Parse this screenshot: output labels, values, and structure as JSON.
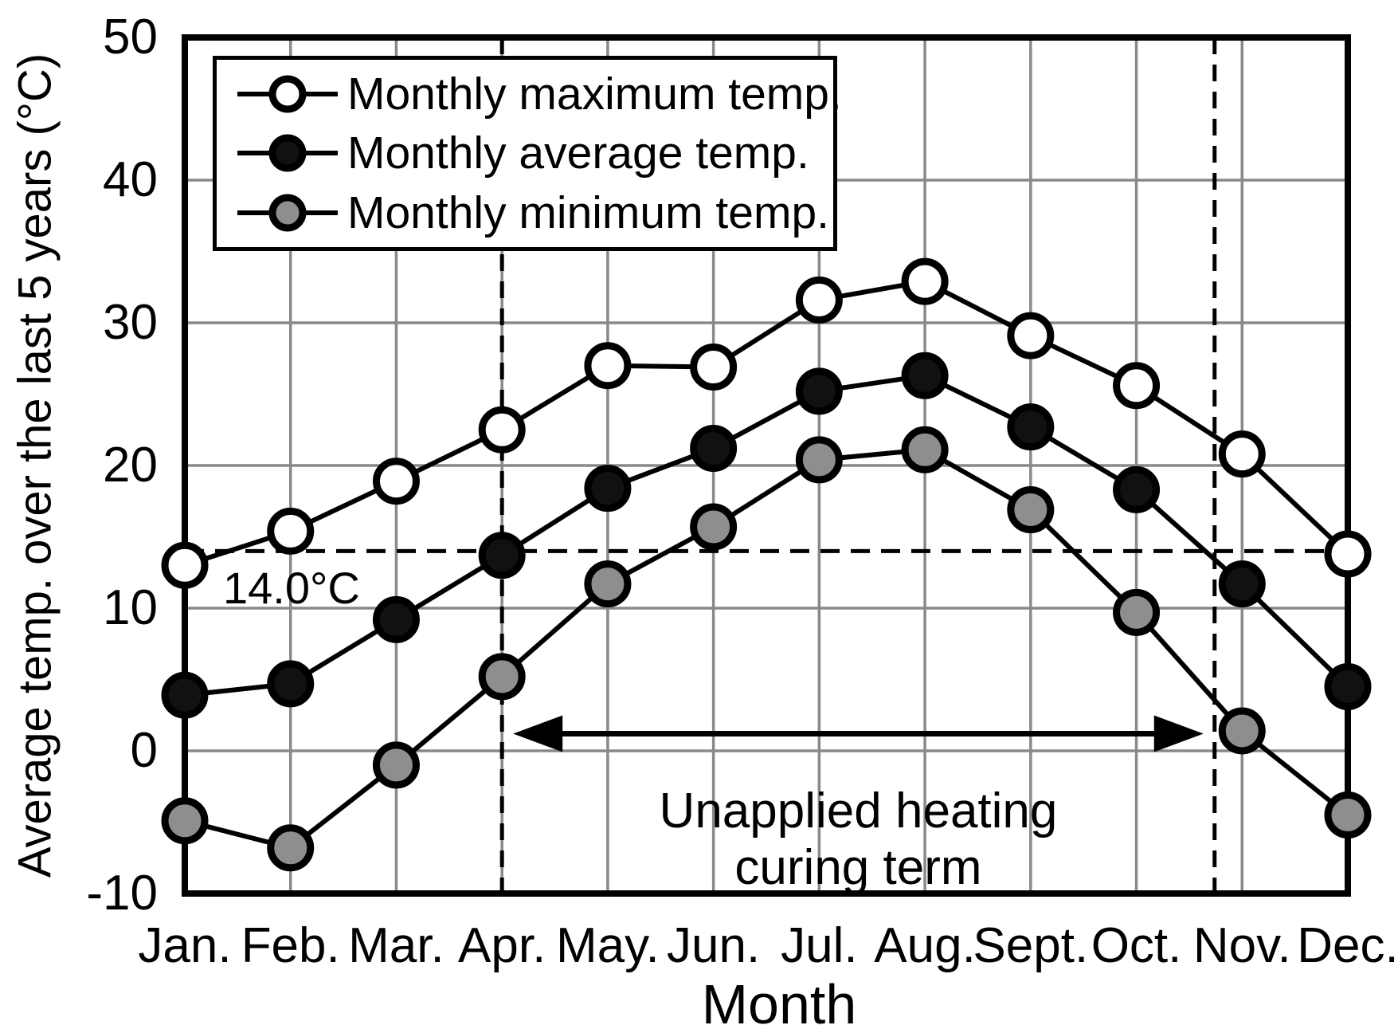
{
  "figure": {
    "y_axis_title": "Average temp. over the last 5 years (°C)",
    "x_axis_title": "Month"
  },
  "legend": {
    "items": [
      {
        "label": "Monthly maximum temp.",
        "marker": "open-circle"
      },
      {
        "label": "Monthly average temp.",
        "marker": "filled-black-circle"
      },
      {
        "label": "Monthly minimum temp.",
        "marker": "filled-gray-circle"
      }
    ]
  },
  "chart_data": {
    "type": "line",
    "title": "",
    "xlabel": "Month",
    "ylabel": "Average temp. over the last 5 years (°C)",
    "categories": [
      "Jan.",
      "Feb.",
      "Mar.",
      "Apr.",
      "May.",
      "Jun.",
      "Jul.",
      "Aug.",
      "Sept.",
      "Oct.",
      "Nov.",
      "Dec."
    ],
    "ylim": [
      -10,
      50
    ],
    "y_ticks": [
      50,
      40,
      30,
      20,
      10,
      0,
      -10
    ],
    "grid": true,
    "legend_position": "top-left-inside",
    "series": [
      {
        "name": "Monthly maximum temp.",
        "marker": "open-circle",
        "marker_fill": "#ffffff",
        "values": [
          13.0,
          15.4,
          18.9,
          22.5,
          27.0,
          26.9,
          31.6,
          32.9,
          29.1,
          25.6,
          20.8,
          13.8
        ]
      },
      {
        "name": "Monthly average temp.",
        "marker": "filled-black-circle",
        "marker_fill": "#111111",
        "values": [
          3.9,
          4.7,
          9.2,
          13.7,
          18.4,
          21.2,
          25.2,
          26.3,
          22.7,
          18.3,
          11.7,
          4.5
        ]
      },
      {
        "name": "Monthly minimum temp.",
        "marker": "filled-gray-circle",
        "marker_fill": "#8e8e8e",
        "values": [
          -4.9,
          -6.8,
          -1.0,
          5.2,
          11.7,
          15.7,
          20.4,
          21.1,
          16.9,
          9.7,
          1.4,
          -4.5
        ]
      }
    ],
    "reference_line": {
      "value": 14.0,
      "label": "14.0°C",
      "style": "dashed"
    },
    "annotations": {
      "vertical_lines": [
        {
          "month_index": 3,
          "style": "dashed"
        },
        {
          "month_index": 9.74,
          "style": "dashed"
        }
      ],
      "arrow": {
        "from_month_index": 3,
        "to_month_index": 9.74,
        "temp": 1.2,
        "label_line1": "Unapplied heating",
        "label_line2": "curing term"
      }
    },
    "style": {
      "line_color": "#000000",
      "grid_color": "#898989",
      "background": "#ffffff"
    }
  }
}
